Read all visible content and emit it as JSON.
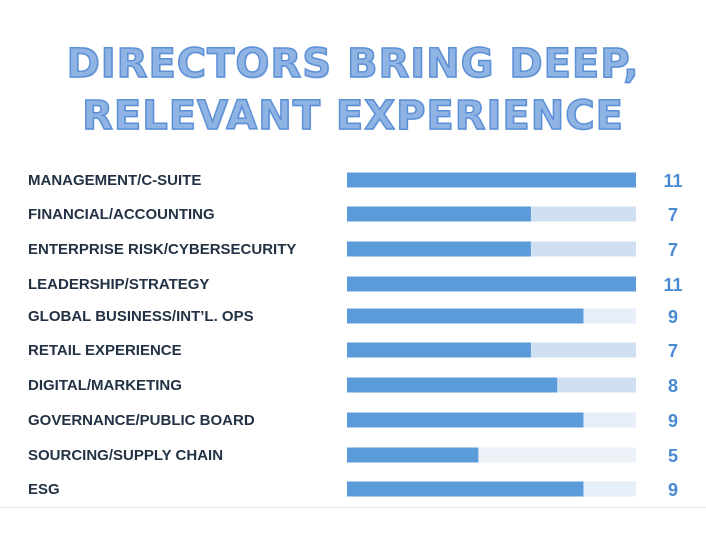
{
  "title_lines": [
    "DIRECTORS BRING DEEP,",
    "RELEVANT EXPERIENCE"
  ],
  "colors": {
    "bar": "#5b9bd9",
    "value_text": "#4a8ad2",
    "track_by_value": {
      "11": "#cfe0f3",
      "9": "#e6eef8",
      "8": "#cfe0f3",
      "7": "#cfe0f3",
      "5": "#edf2f8"
    }
  },
  "chart_data": {
    "type": "bar",
    "orientation": "horizontal",
    "categories": [
      "MANAGEMENT/C-SUITE",
      "FINANCIAL/ACCOUNTING",
      "ENTERPRISE RISK/CYBERSECURITY",
      "LEADERSHIP/STRATEGY",
      "GLOBAL BUSINESS/INT’L. OPS",
      "RETAIL EXPERIENCE",
      "DIGITAL/MARKETING",
      "GOVERNANCE/PUBLIC BOARD",
      "SOURCING/SUPPLY CHAIN",
      "ESG"
    ],
    "values": [
      11,
      7,
      7,
      11,
      9,
      7,
      8,
      9,
      5,
      9
    ],
    "xlim": [
      0,
      11
    ]
  }
}
